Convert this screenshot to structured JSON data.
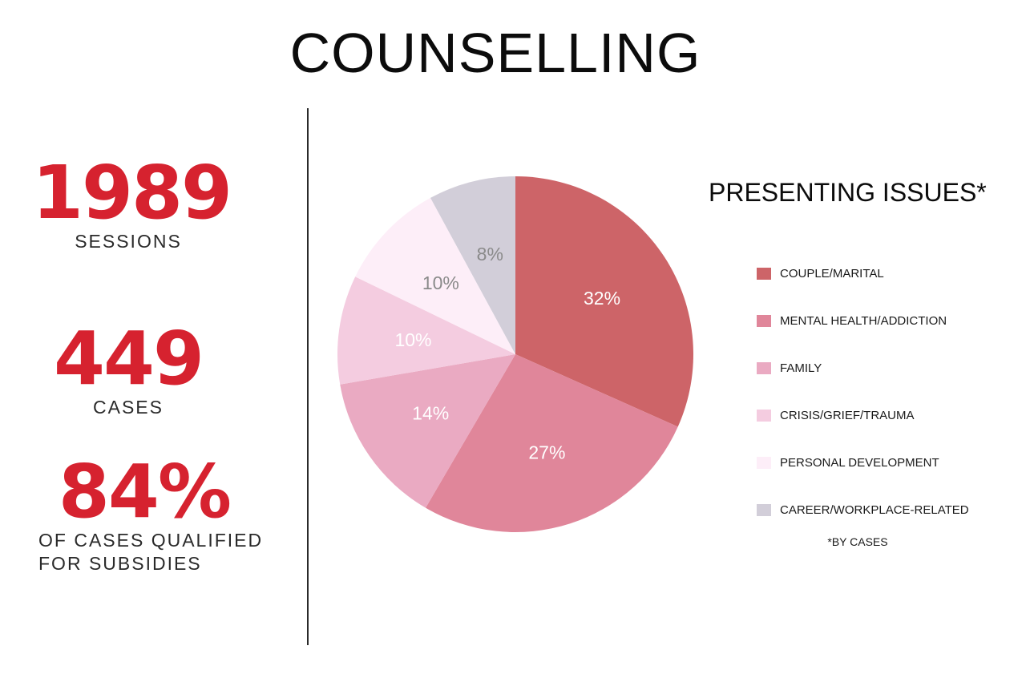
{
  "title": "COUNSELLING",
  "stats": {
    "sessions": {
      "value": "1989",
      "label": "SESSIONS"
    },
    "cases": {
      "value": "449",
      "label": "CASES"
    },
    "subsidies": {
      "value": "84%",
      "label_line1": "OF CASES QUALIFIED",
      "label_line2": "FOR SUBSIDIES"
    }
  },
  "legend_title": "PRESENTING ISSUES*",
  "footnote": "*BY CASES",
  "chart_data": {
    "type": "pie",
    "title": "PRESENTING ISSUES*",
    "categories": [
      "COUPLE/MARITAL",
      "MENTAL HEALTH/ADDICTION",
      "FAMILY",
      "CRISIS/GRIEF/TRAUMA",
      "PERSONAL DEVELOPMENT",
      "CAREER/WORKPLACE-RELATED"
    ],
    "values": [
      32,
      27,
      14,
      10,
      10,
      8
    ],
    "labels": [
      "32%",
      "27%",
      "14%",
      "10%",
      "10%",
      "8%"
    ],
    "colors": [
      "#cd6468",
      "#e0869a",
      "#eaaac2",
      "#f4cce0",
      "#fdeef8",
      "#d2ced9"
    ],
    "label_colors": [
      "#ffffff",
      "#ffffff",
      "#ffffff",
      "#ffffff",
      "#8a8a8a",
      "#8a8a8a"
    ],
    "legend_position": "right"
  }
}
